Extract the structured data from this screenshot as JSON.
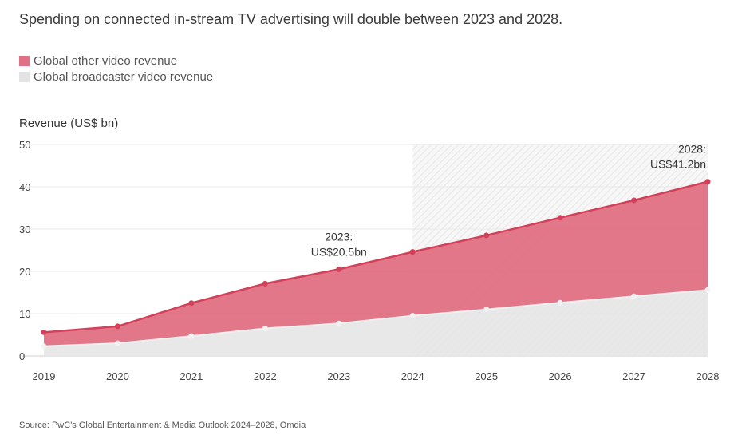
{
  "header": {
    "title": "Spending on connected in-stream TV advertising will double between 2023 and 2028."
  },
  "colors": {
    "other": "#e07083",
    "other_line": "#d2405a",
    "broadcaster": "#e6e6e6",
    "broadcaster_line": "#f0f0f0"
  },
  "chart_data": {
    "type": "area",
    "ylabel": "Revenue (US$ bn)",
    "x": [
      "2019",
      "2020",
      "2021",
      "2022",
      "2023",
      "2024",
      "2025",
      "2026",
      "2027",
      "2028"
    ],
    "ylim": [
      0,
      50
    ],
    "yticks": [
      0,
      10,
      20,
      30,
      40,
      50
    ],
    "stacked": true,
    "series": [
      {
        "name": "Global broadcaster video revenue",
        "values": [
          2.3,
          3.0,
          4.7,
          6.5,
          7.7,
          9.5,
          11.0,
          12.6,
          14.1,
          15.6
        ]
      },
      {
        "name": "Global other video revenue",
        "values": [
          3.3,
          4.0,
          7.8,
          10.6,
          12.8,
          15.1,
          17.5,
          20.1,
          22.7,
          25.6
        ]
      }
    ],
    "totals": [
      5.6,
      7.0,
      12.5,
      17.1,
      20.5,
      24.6,
      28.5,
      32.7,
      36.8,
      41.2
    ],
    "forecast_from": "2024",
    "grid": true,
    "legend_position": "top-left",
    "annotations": [
      {
        "x": "2023",
        "line1": "2023:",
        "line2": "US$20.5bn"
      },
      {
        "x": "2028",
        "line1": "2028:",
        "line2": "US$41.2bn"
      }
    ]
  },
  "footer": {
    "source": "Source: PwC's Global Entertainment & Media Outlook 2024–2028, Omdia"
  }
}
